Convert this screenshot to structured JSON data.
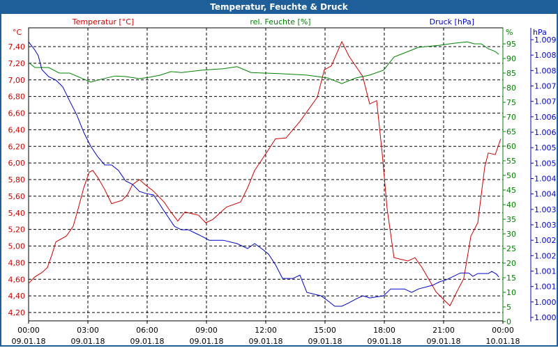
{
  "window": {
    "title": "Temperatur, Feuchte & Druck"
  },
  "colors": {
    "temperature": "#cc0000",
    "humidity": "#008000",
    "pressure": "#0000cc",
    "titlebar": "#1f5f99"
  },
  "chart_data": {
    "type": "line",
    "title": "Temperatur, Feuchte & Druck",
    "grid": true,
    "x_axis": {
      "range_hours": [
        0,
        24
      ],
      "ticks": [
        {
          "h": 0,
          "time": "00:00",
          "date": "09.01.18"
        },
        {
          "h": 3,
          "time": "03:00",
          "date": "09.01.18"
        },
        {
          "h": 6,
          "time": "06:00",
          "date": "09.01.18"
        },
        {
          "h": 9,
          "time": "09:00",
          "date": "09.01.18"
        },
        {
          "h": 12,
          "time": "12:00",
          "date": "09.01.18"
        },
        {
          "h": 15,
          "time": "15:00",
          "date": "09.01.18"
        },
        {
          "h": 18,
          "time": "18:00",
          "date": "09.01.18"
        },
        {
          "h": 21,
          "time": "21:00",
          "date": "09.01.18"
        },
        {
          "h": 24,
          "time": "00:00",
          "date": "10.01.18"
        }
      ]
    },
    "y_axes": {
      "temperature": {
        "unit": "°C",
        "legend": "Temperatur [°C]",
        "range": [
          4.2,
          7.4
        ],
        "ticks": [
          "7,40",
          "7,20",
          "7,00",
          "6,80",
          "6,60",
          "6,40",
          "6,20",
          "6,00",
          "5,80",
          "5,60",
          "5,40",
          "5,20",
          "5,00",
          "4,80",
          "4,60",
          "4,40",
          "4,20"
        ]
      },
      "humidity": {
        "unit": "%",
        "legend": "rel. Feuchte [%]",
        "range": [
          0,
          95
        ],
        "ticks": [
          "95",
          "90",
          "85",
          "80",
          "75",
          "70",
          "65",
          "60",
          "55",
          "50",
          "45",
          "40",
          "35",
          "30",
          "25",
          "20",
          "15",
          "10",
          "5",
          "0"
        ]
      },
      "pressure": {
        "unit": "hPa",
        "legend": "Druck [hPa]",
        "range": [
          1000,
          1009
        ],
        "ticks": [
          "1.009",
          "1.008",
          "1.008",
          "1.007",
          "1.007",
          "1.006",
          "1.006",
          "1.005",
          "1.005",
          "1.004",
          "1.004",
          "1.003",
          "1.003",
          "1.002",
          "1.002",
          "1.001",
          "1.001",
          "1.000",
          "1.000"
        ]
      }
    },
    "series": [
      {
        "name": "Temperatur [°C]",
        "axis": "temperature",
        "points": [
          [
            0,
            4.55
          ],
          [
            0.32,
            4.63
          ],
          [
            0.67,
            4.68
          ],
          [
            0.95,
            4.74
          ],
          [
            1.2,
            4.91
          ],
          [
            1.38,
            5.05
          ],
          [
            1.91,
            5.12
          ],
          [
            2.26,
            5.24
          ],
          [
            2.51,
            5.45
          ],
          [
            2.79,
            5.7
          ],
          [
            3.07,
            5.89
          ],
          [
            3.25,
            5.91
          ],
          [
            3.49,
            5.83
          ],
          [
            3.85,
            5.68
          ],
          [
            4.2,
            5.51
          ],
          [
            4.73,
            5.55
          ],
          [
            5.01,
            5.62
          ],
          [
            5.26,
            5.74
          ],
          [
            5.61,
            5.8
          ],
          [
            5.89,
            5.74
          ],
          [
            6.32,
            5.66
          ],
          [
            6.85,
            5.53
          ],
          [
            7.2,
            5.41
          ],
          [
            7.55,
            5.3
          ],
          [
            7.91,
            5.41
          ],
          [
            8.61,
            5.37
          ],
          [
            8.96,
            5.28
          ],
          [
            9.32,
            5.32
          ],
          [
            10.02,
            5.47
          ],
          [
            10.73,
            5.53
          ],
          [
            11.08,
            5.7
          ],
          [
            11.44,
            5.91
          ],
          [
            12.14,
            6.16
          ],
          [
            12.49,
            6.29
          ],
          [
            13.02,
            6.3
          ],
          [
            13.73,
            6.5
          ],
          [
            14.61,
            6.79
          ],
          [
            14.96,
            7.12
          ],
          [
            15.32,
            7.17
          ],
          [
            15.85,
            7.46
          ],
          [
            16.2,
            7.29
          ],
          [
            16.91,
            7.04
          ],
          [
            17.26,
            6.71
          ],
          [
            17.61,
            6.75
          ],
          [
            17.89,
            6.12
          ],
          [
            18.14,
            5.45
          ],
          [
            18.49,
            4.86
          ],
          [
            19.2,
            4.82
          ],
          [
            19.55,
            4.86
          ],
          [
            19.91,
            4.74
          ],
          [
            20.61,
            4.45
          ],
          [
            21.32,
            4.28
          ],
          [
            21.67,
            4.45
          ],
          [
            22.02,
            4.61
          ],
          [
            22.38,
            5.12
          ],
          [
            22.73,
            5.28
          ],
          [
            23.08,
            5.95
          ],
          [
            23.26,
            6.12
          ],
          [
            23.61,
            6.1
          ],
          [
            23.89,
            6.29
          ]
        ]
      },
      {
        "name": "rel. Feuchte [%]",
        "axis": "humidity",
        "points": [
          [
            0,
            88.6
          ],
          [
            0.32,
            86.9
          ],
          [
            1.02,
            86.9
          ],
          [
            1.55,
            85.0
          ],
          [
            2.08,
            85.0
          ],
          [
            3.14,
            81.9
          ],
          [
            3.67,
            82.9
          ],
          [
            4.38,
            84.0
          ],
          [
            4.91,
            83.8
          ],
          [
            5.61,
            83.1
          ],
          [
            6.14,
            83.6
          ],
          [
            6.67,
            84.3
          ],
          [
            7.2,
            85.5
          ],
          [
            7.73,
            85.2
          ],
          [
            8.79,
            86.0
          ],
          [
            9.85,
            86.5
          ],
          [
            10.55,
            87.2
          ],
          [
            11.26,
            85.2
          ],
          [
            12.67,
            84.8
          ],
          [
            14.08,
            84.3
          ],
          [
            15.14,
            83.3
          ],
          [
            15.85,
            81.4
          ],
          [
            16.55,
            83.3
          ],
          [
            17.26,
            84.3
          ],
          [
            17.96,
            86.0
          ],
          [
            18.49,
            90.5
          ],
          [
            19.02,
            91.9
          ],
          [
            19.73,
            93.8
          ],
          [
            20.79,
            94.5
          ],
          [
            21.49,
            95.2
          ],
          [
            22.2,
            95.7
          ],
          [
            22.55,
            95.0
          ],
          [
            22.91,
            95.0
          ],
          [
            23.26,
            93.3
          ],
          [
            23.61,
            92.4
          ],
          [
            23.79,
            91.4
          ]
        ]
      },
      {
        "name": "Druck [hPa]",
        "axis": "pressure",
        "points": [
          [
            0,
            1008.93
          ],
          [
            0.32,
            1008.66
          ],
          [
            0.49,
            1008.48
          ],
          [
            0.67,
            1008.03
          ],
          [
            1.02,
            1007.8
          ],
          [
            1.38,
            1007.69
          ],
          [
            1.73,
            1007.47
          ],
          [
            2.08,
            1007.01
          ],
          [
            2.44,
            1006.56
          ],
          [
            2.79,
            1006.0
          ],
          [
            3.14,
            1005.55
          ],
          [
            3.49,
            1005.21
          ],
          [
            3.85,
            1004.94
          ],
          [
            4.2,
            1004.94
          ],
          [
            4.55,
            1004.76
          ],
          [
            4.91,
            1004.42
          ],
          [
            5.26,
            1004.31
          ],
          [
            5.61,
            1004.08
          ],
          [
            5.96,
            1004.01
          ],
          [
            6.32,
            1003.97
          ],
          [
            6.67,
            1003.63
          ],
          [
            7.02,
            1003.29
          ],
          [
            7.38,
            1002.95
          ],
          [
            7.73,
            1002.84
          ],
          [
            8.08,
            1002.84
          ],
          [
            8.44,
            1002.73
          ],
          [
            8.79,
            1002.62
          ],
          [
            9.14,
            1002.5
          ],
          [
            9.85,
            1002.5
          ],
          [
            10.55,
            1002.39
          ],
          [
            11.08,
            1002.23
          ],
          [
            11.44,
            1002.39
          ],
          [
            11.79,
            1002.23
          ],
          [
            12.14,
            1002.05
          ],
          [
            12.49,
            1001.71
          ],
          [
            12.85,
            1001.26
          ],
          [
            13.38,
            1001.26
          ],
          [
            13.73,
            1001.37
          ],
          [
            14.08,
            1000.81
          ],
          [
            14.79,
            1000.7
          ],
          [
            15.14,
            1000.54
          ],
          [
            15.49,
            1000.36
          ],
          [
            15.85,
            1000.36
          ],
          [
            16.2,
            1000.47
          ],
          [
            16.55,
            1000.59
          ],
          [
            16.91,
            1000.7
          ],
          [
            17.26,
            1000.63
          ],
          [
            17.96,
            1000.7
          ],
          [
            18.32,
            1000.92
          ],
          [
            19.02,
            1000.92
          ],
          [
            19.38,
            1000.81
          ],
          [
            19.73,
            1000.92
          ],
          [
            20.44,
            1001.04
          ],
          [
            20.79,
            1001.15
          ],
          [
            21.14,
            1001.22
          ],
          [
            21.85,
            1001.44
          ],
          [
            22.27,
            1001.44
          ],
          [
            22.48,
            1001.33
          ],
          [
            22.73,
            1001.42
          ],
          [
            23.26,
            1001.42
          ],
          [
            23.44,
            1001.49
          ],
          [
            23.68,
            1001.4
          ],
          [
            23.79,
            1001.31
          ]
        ]
      }
    ]
  }
}
